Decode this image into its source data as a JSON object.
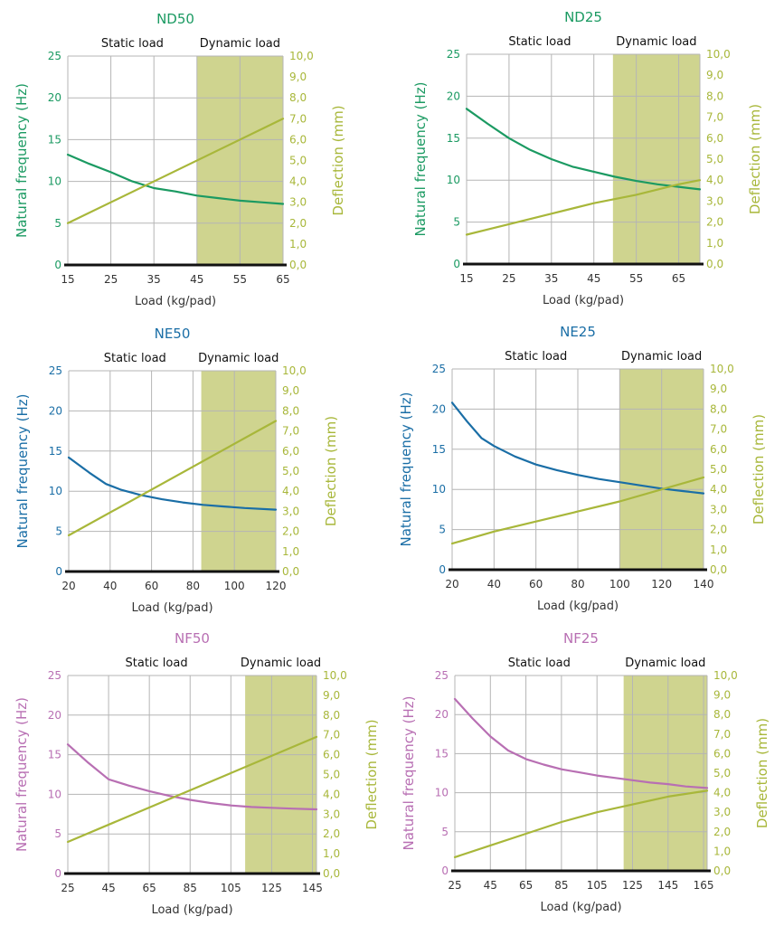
{
  "colors": {
    "dynamic_band": "#cfd48f",
    "deflection_line": "#a8b73a",
    "grid": "#b5b5b5",
    "axis": "#111111"
  },
  "chart_data": [
    {
      "type": "line",
      "title": "ND50",
      "accent": "#1b9a62",
      "zone_labels": [
        "Static load",
        "Dynamic load"
      ],
      "xlabel": "Load (kg/pad)",
      "ylabel_left": "Natural frequency (Hz)",
      "ylabel_right": "Deflection (mm)",
      "xlim": [
        15,
        65
      ],
      "xticks": [
        "15",
        "25",
        "35",
        "45",
        "55",
        "65"
      ],
      "ylim_left": [
        0,
        25
      ],
      "yticks_left": [
        "0",
        "5",
        "10",
        "15",
        "20",
        "25"
      ],
      "ylim_right": [
        0,
        10
      ],
      "yticks_right": [
        "0,0",
        "1,0",
        "2,0",
        "3,0",
        "4,0",
        "5,0",
        "6,0",
        "7,0",
        "8,0",
        "9,0",
        "10,0"
      ],
      "dynamic_range": [
        45,
        65
      ],
      "series": [
        {
          "axis": "left",
          "x": [
            15,
            20,
            25,
            30,
            35,
            40,
            45,
            50,
            55,
            60,
            65
          ],
          "y": [
            13.2,
            12.1,
            11.1,
            10.0,
            9.2,
            8.8,
            8.3,
            8.0,
            7.7,
            7.5,
            7.3
          ]
        },
        {
          "axis": "right",
          "x": [
            15,
            65
          ],
          "y": [
            2.0,
            7.0
          ]
        }
      ]
    },
    {
      "type": "line",
      "title": "ND25",
      "accent": "#1b9a62",
      "zone_labels": [
        "Static load",
        "Dynamic load"
      ],
      "xlabel": "Load (kg/pad)",
      "ylabel_left": "Natural frequency (Hz)",
      "ylabel_right": "Deflection (mm)",
      "xlim": [
        15,
        70
      ],
      "xticks": [
        "15",
        "25",
        "35",
        "45",
        "55",
        "65"
      ],
      "ylim_left": [
        0,
        25
      ],
      "yticks_left": [
        "0",
        "5",
        "10",
        "15",
        "20",
        "25"
      ],
      "ylim_right": [
        0,
        10
      ],
      "yticks_right": [
        "0,0",
        "1,0",
        "2,0",
        "3,0",
        "4,0",
        "5,0",
        "6,0",
        "7,0",
        "8,0",
        "9,0",
        "10,0"
      ],
      "dynamic_range": [
        49.5,
        70
      ],
      "series": [
        {
          "axis": "left",
          "x": [
            15,
            20,
            25,
            30,
            35,
            40,
            45,
            50,
            55,
            60,
            65,
            70
          ],
          "y": [
            18.5,
            16.7,
            15.0,
            13.6,
            12.5,
            11.6,
            11.0,
            10.4,
            9.9,
            9.5,
            9.2,
            8.9
          ]
        },
        {
          "axis": "right",
          "x": [
            15,
            25,
            35,
            45,
            55,
            65,
            70
          ],
          "y": [
            1.4,
            1.9,
            2.4,
            2.9,
            3.3,
            3.8,
            4.0
          ]
        }
      ]
    },
    {
      "type": "line",
      "title": "NE50",
      "accent": "#1a6ea6",
      "zone_labels": [
        "Static load",
        "Dynamic load"
      ],
      "xlabel": "Load (kg/pad)",
      "ylabel_left": "Natural frequency (Hz)",
      "ylabel_right": "Deflection (mm)",
      "xlim": [
        20,
        120
      ],
      "xticks": [
        "20",
        "40",
        "60",
        "80",
        "100",
        "120"
      ],
      "ylim_left": [
        0,
        25
      ],
      "yticks_left": [
        "0",
        "5",
        "10",
        "15",
        "20",
        "25"
      ],
      "ylim_right": [
        0,
        10
      ],
      "yticks_right": [
        "0,0",
        "1,0",
        "2,0",
        "3,0",
        "4,0",
        "5,0",
        "6,0",
        "7,0",
        "8,0",
        "9,0",
        "10,0"
      ],
      "dynamic_range": [
        84,
        120
      ],
      "series": [
        {
          "axis": "left",
          "x": [
            20,
            30,
            38,
            45,
            55,
            65,
            75,
            85,
            95,
            105,
            120
          ],
          "y": [
            14.2,
            12.3,
            10.9,
            10.2,
            9.5,
            9.0,
            8.6,
            8.3,
            8.1,
            7.9,
            7.7
          ]
        },
        {
          "axis": "right",
          "x": [
            20,
            120
          ],
          "y": [
            1.8,
            7.5
          ]
        }
      ]
    },
    {
      "type": "line",
      "title": "NE25",
      "accent": "#1a6ea6",
      "zone_labels": [
        "Static load",
        "Dynamic load"
      ],
      "xlabel": "Load (kg/pad)",
      "ylabel_left": "Natural frequency (Hz)",
      "ylabel_right": "Deflection (mm)",
      "xlim": [
        20,
        140
      ],
      "xticks": [
        "20",
        "40",
        "60",
        "80",
        "100",
        "120",
        "140"
      ],
      "ylim_left": [
        0,
        25
      ],
      "yticks_left": [
        "0",
        "5",
        "10",
        "15",
        "20",
        "25"
      ],
      "ylim_right": [
        0,
        10
      ],
      "yticks_right": [
        "0,0",
        "1,0",
        "2,0",
        "3,0",
        "4,0",
        "5,0",
        "6,0",
        "7,0",
        "8,0",
        "9,0",
        "10,0"
      ],
      "dynamic_range": [
        100,
        140
      ],
      "series": [
        {
          "axis": "left",
          "x": [
            20,
            27,
            34,
            40,
            50,
            60,
            70,
            80,
            90,
            100,
            110,
            120,
            130,
            140
          ],
          "y": [
            20.8,
            18.5,
            16.4,
            15.4,
            14.1,
            13.1,
            12.4,
            11.8,
            11.3,
            10.9,
            10.5,
            10.1,
            9.8,
            9.5
          ]
        },
        {
          "axis": "right",
          "x": [
            20,
            40,
            60,
            80,
            100,
            120,
            140
          ],
          "y": [
            1.3,
            1.9,
            2.4,
            2.9,
            3.4,
            4.0,
            4.6
          ]
        }
      ]
    },
    {
      "type": "line",
      "title": "NF50",
      "accent": "#b86fb3",
      "zone_labels": [
        "Static load",
        "Dynamic load"
      ],
      "xlabel": "Load (kg/pad)",
      "ylabel_left": "Natural frequency (Hz)",
      "ylabel_right": "Deflection (mm)",
      "xlim": [
        25,
        147
      ],
      "xticks": [
        "25",
        "45",
        "65",
        "85",
        "105",
        "125",
        "145"
      ],
      "ylim_left": [
        0,
        25
      ],
      "yticks_left": [
        "0",
        "5",
        "10",
        "15",
        "20",
        "25"
      ],
      "ylim_right": [
        0,
        10
      ],
      "yticks_right": [
        "0,0",
        "1,0",
        "2,0",
        "3,0",
        "4,0",
        "5,0",
        "6,0",
        "7,0",
        "8,0",
        "9,0",
        "10,0"
      ],
      "dynamic_range": [
        112,
        147
      ],
      "series": [
        {
          "axis": "left",
          "x": [
            25,
            35,
            45,
            55,
            65,
            75,
            85,
            95,
            105,
            115,
            125,
            135,
            147
          ],
          "y": [
            16.3,
            14.0,
            11.9,
            11.1,
            10.4,
            9.8,
            9.3,
            8.9,
            8.6,
            8.4,
            8.3,
            8.2,
            8.1
          ]
        },
        {
          "axis": "right",
          "x": [
            25,
            147
          ],
          "y": [
            1.6,
            6.9
          ]
        }
      ]
    },
    {
      "type": "line",
      "title": "NF25",
      "accent": "#b86fb3",
      "zone_labels": [
        "Static load",
        "Dynamic load"
      ],
      "xlabel": "Load (kg/pad)",
      "ylabel_left": "Natural frequency (Hz)",
      "ylabel_right": "Deflection (mm)",
      "xlim": [
        25,
        167
      ],
      "xticks": [
        "25",
        "45",
        "65",
        "85",
        "105",
        "125",
        "145",
        "165"
      ],
      "ylim_left": [
        0,
        25
      ],
      "yticks_left": [
        "0",
        "5",
        "10",
        "15",
        "20",
        "25"
      ],
      "ylim_right": [
        0,
        10
      ],
      "yticks_right": [
        "0,0",
        "1,0",
        "2,0",
        "3,0",
        "4,0",
        "5,0",
        "6,0",
        "7,0",
        "8,0",
        "9,0",
        "10,0"
      ],
      "dynamic_range": [
        120,
        167
      ],
      "series": [
        {
          "axis": "left",
          "x": [
            25,
            35,
            45,
            55,
            65,
            75,
            85,
            95,
            105,
            115,
            125,
            135,
            145,
            155,
            167
          ],
          "y": [
            22.0,
            19.5,
            17.2,
            15.4,
            14.3,
            13.6,
            13.0,
            12.6,
            12.2,
            11.9,
            11.6,
            11.3,
            11.1,
            10.8,
            10.6
          ]
        },
        {
          "axis": "right",
          "x": [
            25,
            45,
            65,
            85,
            105,
            125,
            145,
            167
          ],
          "y": [
            0.7,
            1.3,
            1.9,
            2.5,
            3.0,
            3.4,
            3.8,
            4.1
          ]
        }
      ]
    }
  ]
}
